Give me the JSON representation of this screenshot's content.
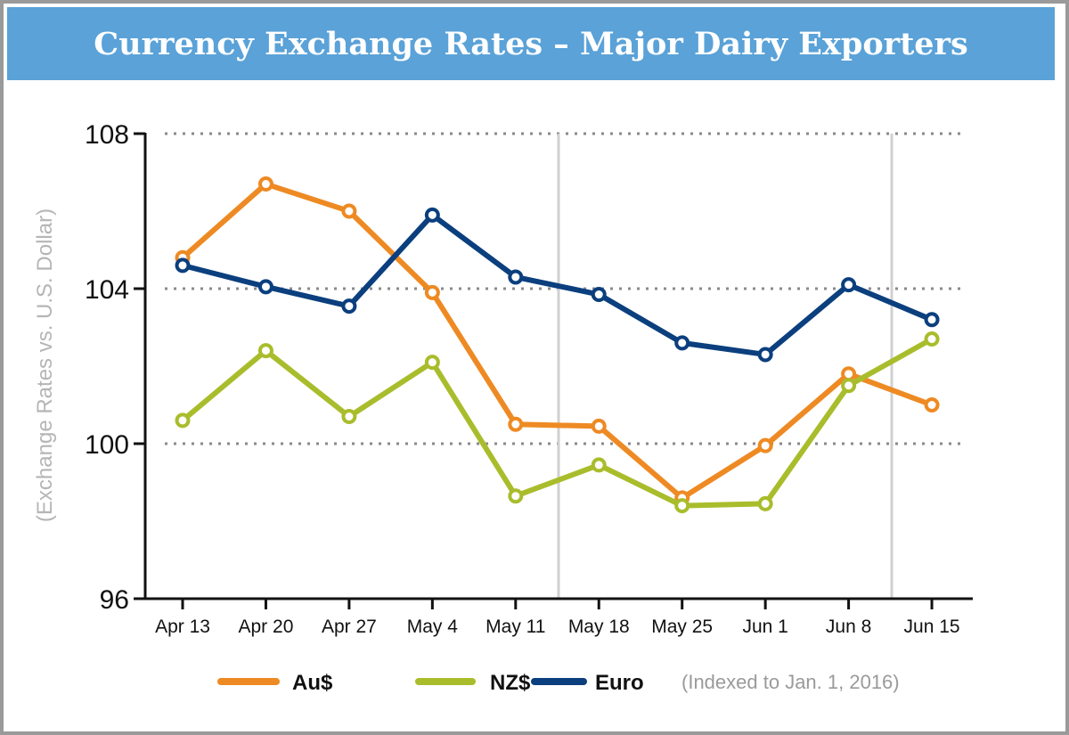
{
  "chart_data": {
    "type": "line",
    "title": "Currency Exchange Rates – Major Dairy Exporters",
    "ylabel": "(Exchange Rates vs. U.S. Dollar)",
    "xlabel": "",
    "ylim": [
      96,
      108
    ],
    "yticks": [
      "96",
      "100",
      "104",
      "108"
    ],
    "categories": [
      "Apr 13",
      "Apr 20",
      "Apr 27",
      "May 4",
      "May 11",
      "May 18",
      "May 25",
      "Jun 1",
      "Jun 8",
      "Jun 15"
    ],
    "grid": "dotted horizontal at 100, 104, 108",
    "legend_position": "bottom",
    "note": "(Indexed to Jan. 1, 2016)",
    "series": [
      {
        "name": "Au$",
        "color": "#ee8a23",
        "values": [
          104.8,
          106.7,
          106.0,
          103.9,
          100.5,
          100.45,
          98.6,
          99.95,
          101.8,
          101.0
        ]
      },
      {
        "name": "NZ$",
        "color": "#a9bd2c",
        "values": [
          100.6,
          102.4,
          100.7,
          102.1,
          98.65,
          99.45,
          98.4,
          98.45,
          101.5,
          102.7
        ]
      },
      {
        "name": "Euro",
        "color": "#0b3f7e",
        "values": [
          104.6,
          104.05,
          103.55,
          105.9,
          104.3,
          103.85,
          102.6,
          102.3,
          104.1,
          103.2
        ]
      }
    ]
  }
}
